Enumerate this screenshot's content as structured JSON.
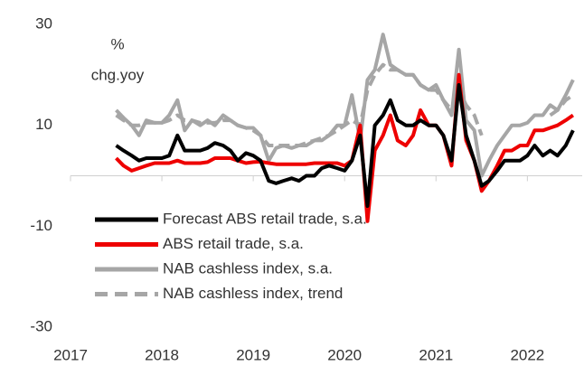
{
  "chart_data": {
    "type": "line",
    "annotation": "%",
    "annotation2": "chg.yoy",
    "xlim": [
      2017,
      2022.6
    ],
    "xticks": [
      2017,
      2018,
      2019,
      2020,
      2021,
      2022
    ],
    "ylim": [
      -30,
      30
    ],
    "yticks": [
      -30,
      -10,
      10,
      30
    ],
    "legend": "lower-left",
    "x": [
      2017.5,
      2017.58,
      2017.67,
      2017.75,
      2017.83,
      2017.92,
      2018,
      2018.08,
      2018.17,
      2018.25,
      2018.33,
      2018.42,
      2018.5,
      2018.58,
      2018.67,
      2018.75,
      2018.83,
      2018.92,
      2019,
      2019.08,
      2019.17,
      2019.25,
      2019.33,
      2019.42,
      2019.5,
      2019.58,
      2019.67,
      2019.75,
      2019.83,
      2019.92,
      2020,
      2020.08,
      2020.17,
      2020.25,
      2020.33,
      2020.42,
      2020.5,
      2020.58,
      2020.67,
      2020.75,
      2020.83,
      2020.92,
      2021,
      2021.08,
      2021.17,
      2021.25,
      2021.33,
      2021.42,
      2021.5,
      2021.58,
      2021.67,
      2021.75,
      2021.83,
      2021.92,
      2022,
      2022.08,
      2022.17,
      2022.25,
      2022.33,
      2022.42,
      2022.5
    ],
    "series": [
      {
        "name": "Forecast ABS retail trade, s.a.",
        "color": "#000000",
        "dash": false,
        "values": [
          6,
          5,
          4,
          3,
          3.5,
          3.5,
          3.5,
          4,
          8,
          5,
          5,
          5,
          5.5,
          6.5,
          6,
          5,
          3,
          4.5,
          4,
          3,
          -1,
          -1.5,
          -1,
          -0.5,
          -1,
          0,
          0,
          1.5,
          2,
          1.5,
          1,
          3,
          8,
          -6,
          10,
          12,
          15,
          11,
          10,
          10,
          11,
          10,
          10,
          8,
          3,
          18,
          8,
          3,
          -2,
          -1,
          1,
          3,
          3,
          3,
          4,
          6,
          4,
          5,
          4,
          6,
          9
        ]
      },
      {
        "name": "ABS retail trade, s.a.",
        "color": "#ee0000",
        "dash": false,
        "values": [
          3.5,
          2,
          1,
          1.5,
          2,
          2.5,
          2.5,
          2.5,
          3,
          2.5,
          2.5,
          2.5,
          2.7,
          3.5,
          3.5,
          3.5,
          3,
          2.5,
          2.7,
          2.8,
          2.5,
          2.3,
          2.3,
          2.3,
          2.3,
          2.3,
          2.5,
          2.5,
          2.5,
          2.5,
          2,
          3,
          10,
          -9,
          5,
          8,
          12,
          7,
          6,
          8,
          13,
          10,
          10,
          8,
          2,
          20,
          7,
          3,
          -3,
          -1,
          2,
          5,
          5,
          6,
          6,
          9,
          9,
          9.5,
          10,
          11,
          12
        ]
      },
      {
        "name": "NAB cashless index, s.a.",
        "color": "#a6a6a6",
        "dash": false,
        "values": [
          13,
          11.5,
          10,
          8,
          11,
          10.5,
          10.5,
          12,
          15,
          9,
          11,
          10,
          11,
          10,
          12,
          11,
          10,
          9.5,
          9.5,
          8,
          3,
          5.5,
          6,
          5.5,
          6,
          6,
          7,
          7,
          8,
          10,
          10,
          16,
          7,
          19,
          21,
          28,
          22,
          21,
          20,
          20,
          18,
          17,
          18,
          15,
          12,
          25,
          11,
          9,
          0,
          3,
          6,
          8,
          10,
          10,
          10.5,
          12,
          12,
          14,
          13,
          16,
          19
        ]
      },
      {
        "name": "NAB cashless index, trend",
        "color": "#a6a6a6",
        "dash": true,
        "values": [
          12,
          11,
          10,
          10,
          10.5,
          10.5,
          10.5,
          11,
          12,
          11,
          11,
          10.5,
          10.5,
          10.5,
          11,
          11,
          10,
          9.5,
          9,
          8,
          6,
          6,
          6,
          6,
          6,
          6.5,
          7,
          7.5,
          8,
          9,
          10,
          11,
          10,
          17,
          20,
          22,
          21,
          21,
          20,
          20,
          18,
          17,
          17,
          15,
          13,
          17,
          14,
          12,
          8,
          null,
          null,
          null,
          null,
          null,
          null,
          null,
          null,
          12,
          13,
          15,
          16
        ]
      }
    ]
  }
}
